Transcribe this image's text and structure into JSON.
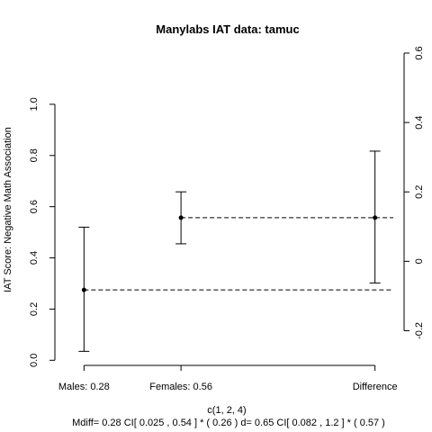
{
  "chart_data": {
    "type": "scatter",
    "title": "Manylabs IAT data:  tamuc",
    "ylabel": "IAT Score: Negative Math Association",
    "xlabel": "c(1, 2, 4)",
    "subtitle": "Mdiff= 0.28  CI[ 0.025 , 0.54 ] *  ( 0.26 )   d= 0.65 CI[ 0.082 ,  1.2 ] *  ( 0.57 )",
    "x_tick_labels": [
      {
        "x": 1,
        "label": "Males:  0.28"
      },
      {
        "x": 2,
        "label": "Females:  0.56"
      },
      {
        "x": 4,
        "label": "Difference"
      }
    ],
    "xlim": [
      0.7,
      4.3
    ],
    "left_axis": {
      "ylim": [
        -0.02,
        1.2
      ],
      "ticks": [
        0.0,
        0.2,
        0.4,
        0.6,
        0.8,
        1.0
      ],
      "tick_labels": [
        "0.0",
        "0.2",
        "0.4",
        "0.6",
        "0.8",
        "1.0"
      ]
    },
    "right_axis": {
      "ylim": [
        -0.3,
        0.6
      ],
      "ticks": [
        -0.2,
        0.0,
        0.2,
        0.4,
        0.6
      ],
      "tick_labels": [
        "-0.2",
        "0",
        "0.2",
        "0.4",
        "0.6"
      ]
    },
    "points": [
      {
        "name": "Males",
        "x": 1,
        "y": 0.275,
        "ci_low": 0.035,
        "ci_high": 0.52
      },
      {
        "name": "Females",
        "x": 2,
        "y": 0.557,
        "ci_low": 0.455,
        "ci_high": 0.658
      },
      {
        "name": "Difference",
        "x": 4,
        "y": 0.557,
        "ci_low": 0.302,
        "ci_high": 0.817
      }
    ],
    "reference_lines": [
      {
        "y": 0.275,
        "x_from": 1,
        "x_to": 4.4
      },
      {
        "y": 0.557,
        "x_from": 2,
        "x_to": 4.4
      }
    ],
    "grid": false
  }
}
